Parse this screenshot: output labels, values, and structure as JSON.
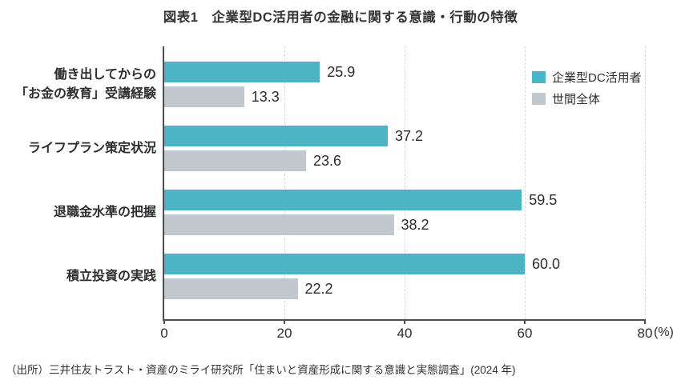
{
  "title": "図表1　企業型DC活用者の金融に関する意識・行動の特徴",
  "source": "（出所）三井住友トラスト・資産のミライ研究所「住まいと資産形成に関する意識と実態調査」(2024 年)",
  "colors": {
    "series_primary": "#4AB5C4",
    "series_secondary": "#C1C8CD",
    "axis": "#4D4D4D",
    "grid": "#D8D8D8",
    "text": "#2E2E2E"
  },
  "chart_data": {
    "type": "bar",
    "orientation": "horizontal",
    "title": "図表1　企業型DC活用者の金融に関する意識・行動の特徴",
    "categories": [
      "働き出してからの\n「お金の教育」受講経験",
      "ライフプラン策定状況",
      "退職金水準の把握",
      "積立投資の実践"
    ],
    "series": [
      {
        "name": "企業型DC活用者",
        "color": "#4AB5C4",
        "values": [
          25.9,
          37.2,
          59.5,
          60.0
        ]
      },
      {
        "name": "世間全体",
        "color": "#C1C8CD",
        "values": [
          13.3,
          23.6,
          38.2,
          22.2
        ]
      }
    ],
    "xlim": [
      0,
      80
    ],
    "x_ticks": [
      0,
      20,
      40,
      60,
      80
    ],
    "x_unit": "(%)",
    "grid": "vertical-dashed",
    "legend_position": "top-right",
    "value_labels_decimals": 1
  }
}
